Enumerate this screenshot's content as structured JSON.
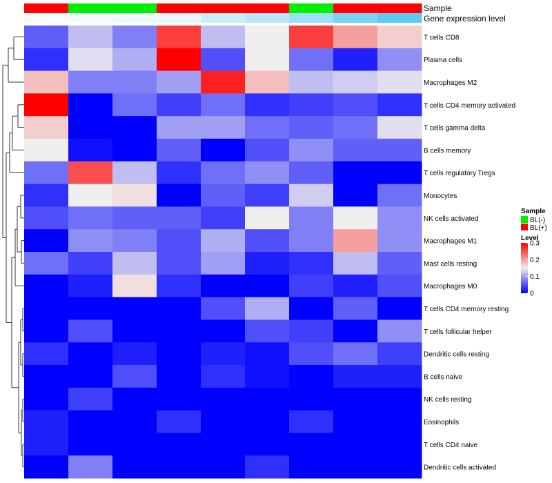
{
  "chart_data": {
    "type": "heatmap",
    "annotation_rows": [
      {
        "label": "Sample",
        "values": [
          "BL(+)",
          "BL(-)",
          "BL(-)",
          "BL(+)",
          "BL(+)",
          "BL(+)",
          "BL(-)",
          "BL(+)",
          "BL(+)"
        ]
      },
      {
        "label": "Gene expression level",
        "values": [
          0.05,
          0.08,
          0.1,
          0.12,
          0.3,
          0.4,
          0.55,
          0.75,
          0.9
        ]
      }
    ],
    "rows": [
      "T cells CD8",
      "Plasma cells",
      "Macrophages M2",
      "T cells CD4 memory activated",
      "T cells gamma delta",
      "B cells memory",
      "T cells regulatory  Tregs",
      "Monocytes",
      "NK cells activated",
      "Macrophages M1",
      "Mast cells resting",
      "Macrophages M0",
      "T cells CD4 memory resting",
      "T cells follicular helper",
      "Dendritic cells resting",
      "B cells naive",
      "NK cells resting",
      "Eosinophils",
      "T cells CD4 naive",
      "Dendritic cells activated"
    ],
    "values": [
      [
        0.06,
        0.12,
        0.08,
        0.26,
        0.12,
        0.15,
        0.26,
        0.2,
        0.17
      ],
      [
        0.03,
        0.14,
        0.11,
        0.3,
        0.05,
        0.15,
        0.07,
        0.02,
        0.09
      ],
      [
        0.18,
        0.08,
        0.08,
        0.1,
        0.28,
        0.18,
        0.12,
        0.13,
        0.14
      ],
      [
        0.3,
        0.0,
        0.07,
        0.04,
        0.07,
        0.03,
        0.04,
        0.05,
        0.03
      ],
      [
        0.17,
        0.0,
        0.0,
        0.1,
        0.1,
        0.07,
        0.06,
        0.07,
        0.14
      ],
      [
        0.15,
        0.01,
        0.0,
        0.06,
        0.0,
        0.05,
        0.09,
        0.06,
        0.06
      ],
      [
        0.07,
        0.25,
        0.12,
        0.03,
        0.07,
        0.09,
        0.06,
        0.0,
        0.0
      ],
      [
        0.03,
        0.15,
        0.16,
        0.0,
        0.06,
        0.04,
        0.13,
        0.0,
        0.07
      ],
      [
        0.05,
        0.07,
        0.06,
        0.06,
        0.04,
        0.15,
        0.08,
        0.15,
        0.09
      ],
      [
        0.0,
        0.09,
        0.08,
        0.05,
        0.11,
        0.05,
        0.08,
        0.2,
        0.09
      ],
      [
        0.07,
        0.04,
        0.12,
        0.05,
        0.1,
        0.02,
        0.03,
        0.12,
        0.06
      ],
      [
        0.0,
        0.02,
        0.16,
        0.03,
        0.0,
        0.0,
        0.04,
        0.02,
        0.05
      ],
      [
        0.0,
        0.0,
        0.0,
        0.0,
        0.05,
        0.11,
        0.0,
        0.06,
        0.0
      ],
      [
        0.0,
        0.05,
        0.0,
        0.0,
        0.0,
        0.05,
        0.04,
        0.0,
        0.09
      ],
      [
        0.03,
        0.0,
        0.02,
        0.0,
        0.02,
        0.01,
        0.05,
        0.07,
        0.04
      ],
      [
        0.0,
        0.0,
        0.05,
        0.0,
        0.03,
        0.01,
        0.0,
        0.02,
        0.02
      ],
      [
        0.0,
        0.04,
        0.0,
        0.0,
        0.0,
        0.0,
        0.0,
        0.0,
        0.0
      ],
      [
        0.02,
        0.0,
        0.0,
        0.03,
        0.0,
        0.0,
        0.03,
        0.0,
        0.0
      ],
      [
        0.02,
        0.0,
        0.0,
        0.0,
        0.0,
        0.0,
        0.0,
        0.0,
        0.0
      ],
      [
        0.0,
        0.08,
        0.0,
        0.0,
        0.0,
        0.03,
        0.0,
        0.0,
        0.0
      ]
    ],
    "scale": {
      "min": 0,
      "mid": 0.15,
      "max": 0.3
    },
    "legend": {
      "sample_title": "Sample",
      "sample_entries": [
        {
          "label": "BL(-)",
          "color": "#00ee00"
        },
        {
          "label": "BL(+)",
          "color": "#ff0000"
        }
      ],
      "level_title": "Level",
      "level_ticks": [
        {
          "value": 0.3,
          "label": "0.3"
        },
        {
          "value": 0.2,
          "label": "0.2"
        },
        {
          "value": 0.1,
          "label": "0.1"
        },
        {
          "value": 0,
          "label": "0"
        }
      ]
    },
    "dendrogram": "row clustering tree (left side)"
  },
  "colors": {
    "low": "#0000ff",
    "mid": "#f0eeee",
    "high": "#ff0000",
    "bl_neg": "#00ee00",
    "bl_pos": "#ff0000",
    "expr_low": "#ffffff",
    "expr_high": "#4fc3ef"
  }
}
